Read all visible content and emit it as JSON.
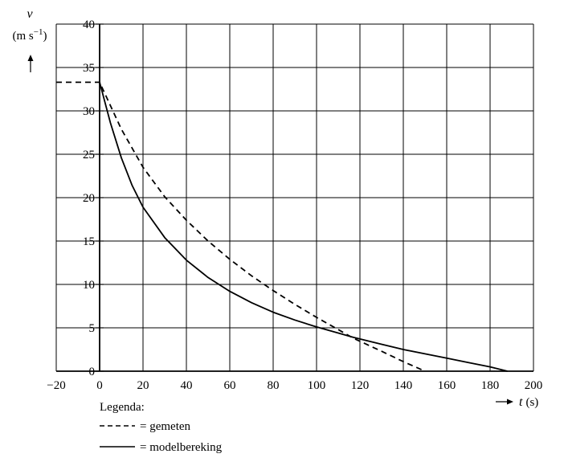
{
  "chart_data": {
    "type": "line",
    "xlim": [
      -20,
      200
    ],
    "ylim": [
      0,
      40
    ],
    "xticks": [
      -20,
      0,
      20,
      40,
      60,
      80,
      100,
      120,
      140,
      160,
      180,
      200
    ],
    "yticks": [
      0,
      5,
      10,
      15,
      20,
      25,
      30,
      35,
      40
    ],
    "grid": true,
    "x_axis": {
      "symbol": "t",
      "unit": "(s)"
    },
    "y_axis": {
      "symbol": "v",
      "unit": "(m s",
      "unit_exp": "−1",
      "unit_close": ")"
    },
    "legend": {
      "title": "Legenda:",
      "position": "bottom-left",
      "entries": [
        "= gemeten",
        "= modelbereking"
      ]
    },
    "series": [
      {
        "name": "gemeten",
        "style": "dashed",
        "x": [
          -20,
          0,
          10,
          20,
          30,
          40,
          50,
          60,
          70,
          80,
          90,
          100,
          110,
          117,
          130,
          140,
          150
        ],
        "y": [
          33.3,
          33.3,
          27.9,
          23.5,
          20.1,
          17.4,
          15.0,
          12.9,
          11.0,
          9.3,
          7.7,
          6.2,
          4.8,
          3.8,
          2.3,
          1.1,
          0
        ]
      },
      {
        "name": "modelbereking",
        "style": "solid",
        "x": [
          0,
          5,
          10,
          15,
          20,
          30,
          40,
          50,
          60,
          70,
          80,
          90,
          100,
          110,
          117,
          130,
          140,
          150,
          160,
          170,
          180,
          188
        ],
        "y": [
          33.3,
          28.6,
          24.6,
          21.4,
          18.9,
          15.4,
          12.8,
          10.8,
          9.2,
          7.9,
          6.8,
          5.9,
          5.1,
          4.4,
          3.9,
          3.1,
          2.5,
          2.0,
          1.5,
          1.0,
          0.5,
          0
        ]
      }
    ]
  }
}
